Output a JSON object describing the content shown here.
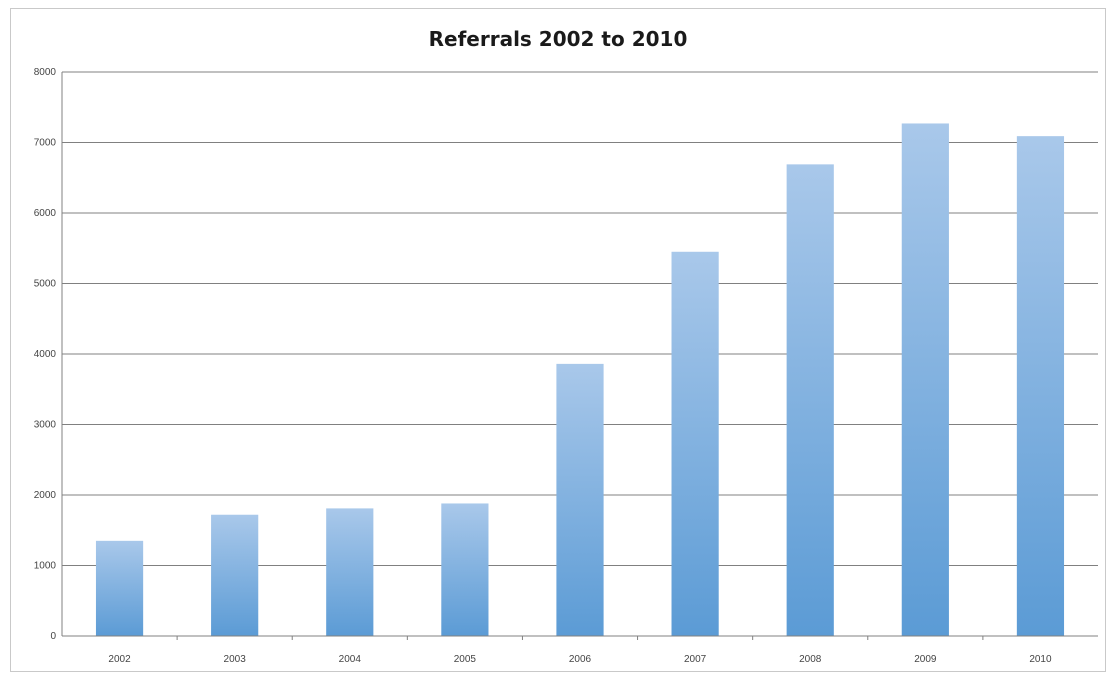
{
  "chart_data": {
    "type": "bar",
    "title": "Referrals 2002 to 2010",
    "xlabel": "",
    "ylabel": "",
    "categories": [
      "2002",
      "2003",
      "2004",
      "2005",
      "2006",
      "2007",
      "2008",
      "2009",
      "2010"
    ],
    "values": [
      1350,
      1720,
      1810,
      1880,
      3860,
      5450,
      6690,
      7270,
      7090
    ],
    "ylim": [
      0,
      8000
    ],
    "yticks": [
      0,
      1000,
      2000,
      3000,
      4000,
      5000,
      6000,
      7000,
      8000
    ],
    "grid": true,
    "legend": "none",
    "colors": {
      "bar_top": "#a9c8ea",
      "bar_bottom": "#5b9bd5",
      "grid": "#808080"
    }
  }
}
